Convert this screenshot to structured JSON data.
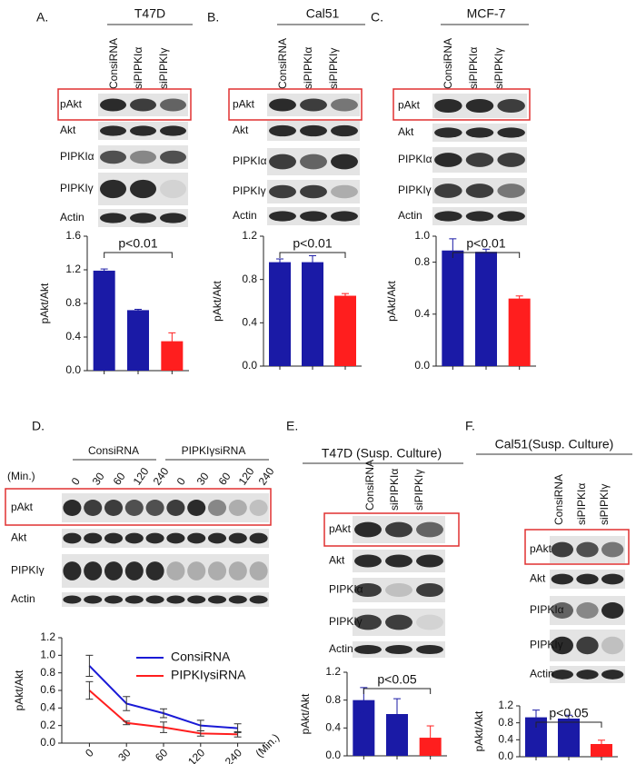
{
  "panels": [
    {
      "label": "A.",
      "title": "T47D",
      "lanes": [
        "ConsiRNA",
        "siPIPKIα",
        "siPIPKIγ"
      ],
      "rows": [
        "pAkt",
        "Akt",
        "PIPKIα",
        "PIPKIγ",
        "Actin"
      ]
    },
    {
      "label": "B.",
      "title": "Cal51",
      "lanes": [
        "ConsiRNA",
        "siPIPKIα",
        "siPIPKIγ"
      ],
      "rows": [
        "pAkt",
        "Akt",
        "PIPKIα",
        "PIPKIγ",
        "Actin"
      ]
    },
    {
      "label": "C.",
      "title": "MCF-7",
      "lanes": [
        "ConsiRNA",
        "siPIPKIα",
        "siPIPKIγ"
      ],
      "rows": [
        "pAkt",
        "Akt",
        "PIPKIα",
        "PIPKIγ",
        "Actin"
      ]
    },
    {
      "label": "D.",
      "groups": [
        "ConsiRNA",
        "PIPKIγsiRNA"
      ],
      "time_label": "(Min.)",
      "lanes": [
        "0",
        "30",
        "60",
        "120",
        "240",
        "0",
        "30",
        "60",
        "120",
        "240"
      ],
      "rows": [
        "pAkt",
        "Akt",
        "PIPKIγ",
        "Actin"
      ]
    },
    {
      "label": "E.",
      "title": "T47D (Susp. Culture)",
      "lanes": [
        "ConsiRNA",
        "siPIPKIα",
        "siPIPKIγ"
      ],
      "rows": [
        "pAkt",
        "Akt",
        "PIPKIα",
        "PIPKIγ",
        "Actin"
      ]
    },
    {
      "label": "F.",
      "title": "Cal51(Susp. Culture)",
      "lanes": [
        "ConsiRNA",
        "siPIPKIα",
        "siPIPKIγ"
      ],
      "rows": [
        "pAkt",
        "Akt",
        "PIPKIα",
        "PIPKIγ",
        "Actin"
      ]
    }
  ],
  "chart_data": [
    {
      "type": "bar",
      "ylabel": "pAkt/Akt",
      "annotation": "p<0.01",
      "values": [
        1.19,
        0.72,
        0.35
      ],
      "errors": [
        0.02,
        0.01,
        0.1
      ],
      "colors": [
        "#1a1aa6",
        "#1a1aa6",
        "#ff1e1e"
      ],
      "ylim": [
        0,
        1.6
      ],
      "yticks": [
        {
          "value": 0,
          "label": "0.0"
        },
        {
          "value": 0.4,
          "label": "0.4"
        },
        {
          "value": 0.8,
          "label": "0.8"
        },
        {
          "value": 1.2,
          "label": "1.2"
        },
        {
          "value": 1.6,
          "label": "1.6"
        }
      ]
    },
    {
      "type": "bar",
      "ylabel": "pAkt/Akt",
      "annotation": "p<0.01",
      "values": [
        0.96,
        0.96,
        0.65
      ],
      "errors": [
        0.03,
        0.06,
        0.02
      ],
      "colors": [
        "#1a1aa6",
        "#1a1aa6",
        "#ff1e1e"
      ],
      "ylim": [
        0,
        1.2
      ],
      "yticks": [
        {
          "value": 0,
          "label": "0.0"
        },
        {
          "value": 0.4,
          "label": "0.4"
        },
        {
          "value": 0.8,
          "label": "0.8"
        },
        {
          "value": 1.2,
          "label": "1.2"
        }
      ]
    },
    {
      "type": "bar",
      "ylabel": "pAkt/Akt",
      "annotation": "p<0.01",
      "values": [
        0.89,
        0.88,
        0.52
      ],
      "errors": [
        0.09,
        0.02,
        0.02
      ],
      "colors": [
        "#1a1aa6",
        "#1a1aa6",
        "#ff1e1e"
      ],
      "ylim": [
        0,
        1.0
      ],
      "yticks": [
        {
          "value": 0,
          "label": "0.0"
        },
        {
          "value": 0.4,
          "label": "0.4"
        },
        {
          "value": 0.8,
          "label": "0.8"
        },
        {
          "value": 1.0,
          "label": "1.0"
        }
      ]
    },
    {
      "type": "line",
      "ylabel": "pAkt/Akt",
      "xlabel": "(Min.)",
      "categories": [
        "0",
        "30",
        "60",
        "120",
        "240"
      ],
      "legend": "upper right",
      "series": [
        {
          "name": "ConsiRNA",
          "color": "#1a1ad6",
          "values": [
            0.88,
            0.45,
            0.34,
            0.2,
            0.17
          ],
          "errors": [
            0.12,
            0.08,
            0.05,
            0.06,
            0.05
          ]
        },
        {
          "name": "PIPKIγsiRNA",
          "color": "#ff1e1e",
          "values": [
            0.6,
            0.23,
            0.18,
            0.11,
            0.1
          ],
          "errors": [
            0.1,
            0.02,
            0.06,
            0.03,
            0.03
          ]
        }
      ],
      "ylim": [
        0,
        1.2
      ],
      "yticks": [
        {
          "value": 0,
          "label": "0.0"
        },
        {
          "value": 0.2,
          "label": "0.2"
        },
        {
          "value": 0.4,
          "label": "0.4"
        },
        {
          "value": 0.6,
          "label": "0.6"
        },
        {
          "value": 0.8,
          "label": "0.8"
        },
        {
          "value": 1.0,
          "label": "1.0"
        },
        {
          "value": 1.2,
          "label": "1.2"
        }
      ]
    },
    {
      "type": "bar",
      "ylabel": "pAkt/Akt",
      "annotation": "p<0.05",
      "values": [
        0.8,
        0.6,
        0.26
      ],
      "errors": [
        0.18,
        0.22,
        0.17
      ],
      "colors": [
        "#1a1aa6",
        "#1a1aa6",
        "#ff1e1e"
      ],
      "ylim": [
        0,
        1.2
      ],
      "yticks": [
        {
          "value": 0,
          "label": "0.0"
        },
        {
          "value": 0.4,
          "label": "0.4"
        },
        {
          "value": 0.8,
          "label": "0.8"
        },
        {
          "value": 1.2,
          "label": "1.2"
        }
      ]
    },
    {
      "type": "bar",
      "ylabel": "pAkt/Akt",
      "annotation": "p<0.05",
      "values": [
        0.93,
        0.9,
        0.3
      ],
      "errors": [
        0.17,
        0.08,
        0.09
      ],
      "colors": [
        "#1a1aa6",
        "#1a1aa6",
        "#ff1e1e"
      ],
      "ylim": [
        0,
        1.2
      ],
      "yticks": [
        {
          "value": 0,
          "label": "0.0"
        },
        {
          "value": 0.4,
          "label": "0.4"
        },
        {
          "value": 0.8,
          "label": "0.8"
        },
        {
          "value": 1.2,
          "label": "1.2"
        }
      ]
    }
  ]
}
